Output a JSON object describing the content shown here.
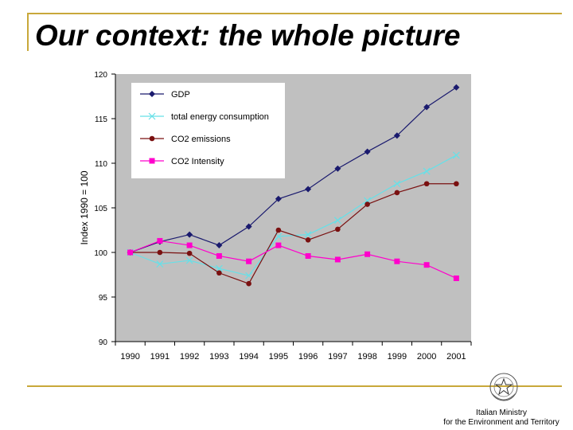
{
  "slide": {
    "title": "Our context: the whole picture",
    "organization_line1": "Italian Ministry",
    "organization_line2": "for the Environment and Territory",
    "accent_color": "#c8a83a"
  },
  "chart_data": {
    "type": "line",
    "title": "",
    "xlabel": "",
    "ylabel": "Index 1990 = 100",
    "x": [
      "1990",
      "1991",
      "1992",
      "1993",
      "1994",
      "1995",
      "1996",
      "1997",
      "1998",
      "1999",
      "2000",
      "2001"
    ],
    "ylim": [
      90,
      120
    ],
    "yticks": [
      90,
      95,
      100,
      105,
      110,
      115,
      120
    ],
    "grid": false,
    "plot_background": "#c0c0c0",
    "legend_position": "top-left",
    "series": [
      {
        "name": "GDP",
        "color": "#1a1a6e",
        "marker": "diamond",
        "values": [
          100.0,
          101.2,
          102.0,
          100.8,
          102.9,
          106.0,
          107.1,
          109.4,
          111.3,
          113.1,
          116.3,
          118.5
        ]
      },
      {
        "name": "total energy consumption",
        "color": "#66e0e8",
        "marker": "x",
        "values": [
          100.0,
          98.7,
          99.1,
          98.2,
          97.4,
          101.8,
          102.0,
          103.6,
          105.8,
          107.7,
          109.1,
          110.9
        ]
      },
      {
        "name": "CO2 emissions",
        "color": "#7a1010",
        "marker": "circle",
        "values": [
          100.0,
          100.0,
          99.9,
          97.7,
          96.5,
          102.5,
          101.4,
          102.6,
          105.4,
          106.7,
          107.7,
          107.7
        ]
      },
      {
        "name": "CO2 Intensity",
        "color": "#ff00cc",
        "marker": "square",
        "values": [
          100.0,
          101.3,
          100.8,
          99.6,
          99.0,
          100.8,
          99.6,
          99.2,
          99.8,
          99.0,
          98.6,
          97.1
        ]
      }
    ]
  }
}
